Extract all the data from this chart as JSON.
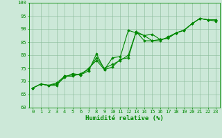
{
  "xlabel": "Humidité relative (%)",
  "background_color": "#cce8d8",
  "grid_color": "#88bb99",
  "line_color": "#008800",
  "ylim": [
    60,
    100
  ],
  "xlim": [
    -0.5,
    23.5
  ],
  "yticks": [
    60,
    65,
    70,
    75,
    80,
    85,
    90,
    95,
    100
  ],
  "xticks": [
    0,
    1,
    2,
    3,
    4,
    5,
    6,
    7,
    8,
    9,
    10,
    11,
    12,
    13,
    14,
    15,
    16,
    17,
    18,
    19,
    20,
    21,
    22,
    23
  ],
  "series": [
    [
      67.5,
      69.0,
      68.5,
      68.5,
      72.0,
      72.5,
      72.5,
      74.0,
      80.5,
      74.5,
      79.0,
      79.5,
      89.5,
      88.5,
      87.5,
      85.5,
      86.0,
      86.5,
      88.5,
      89.5,
      92.0,
      94.0,
      93.5,
      93.0
    ],
    [
      67.5,
      69.0,
      68.5,
      69.0,
      71.5,
      73.0,
      72.5,
      75.0,
      78.0,
      74.5,
      75.5,
      78.5,
      79.0,
      89.0,
      85.5,
      85.5,
      85.5,
      87.0,
      88.5,
      89.5,
      92.0,
      94.0,
      93.5,
      93.5
    ],
    [
      67.5,
      69.0,
      68.5,
      69.5,
      72.0,
      72.0,
      73.0,
      74.5,
      79.0,
      75.0,
      76.5,
      78.0,
      80.0,
      89.0,
      87.5,
      88.0,
      86.0,
      86.5,
      88.5,
      89.5,
      92.0,
      94.0,
      93.5,
      93.5
    ]
  ],
  "marker": "D",
  "marker_size": 1.8,
  "line_width": 0.8,
  "tick_fontsize": 5.0,
  "xlabel_fontsize": 6.5
}
